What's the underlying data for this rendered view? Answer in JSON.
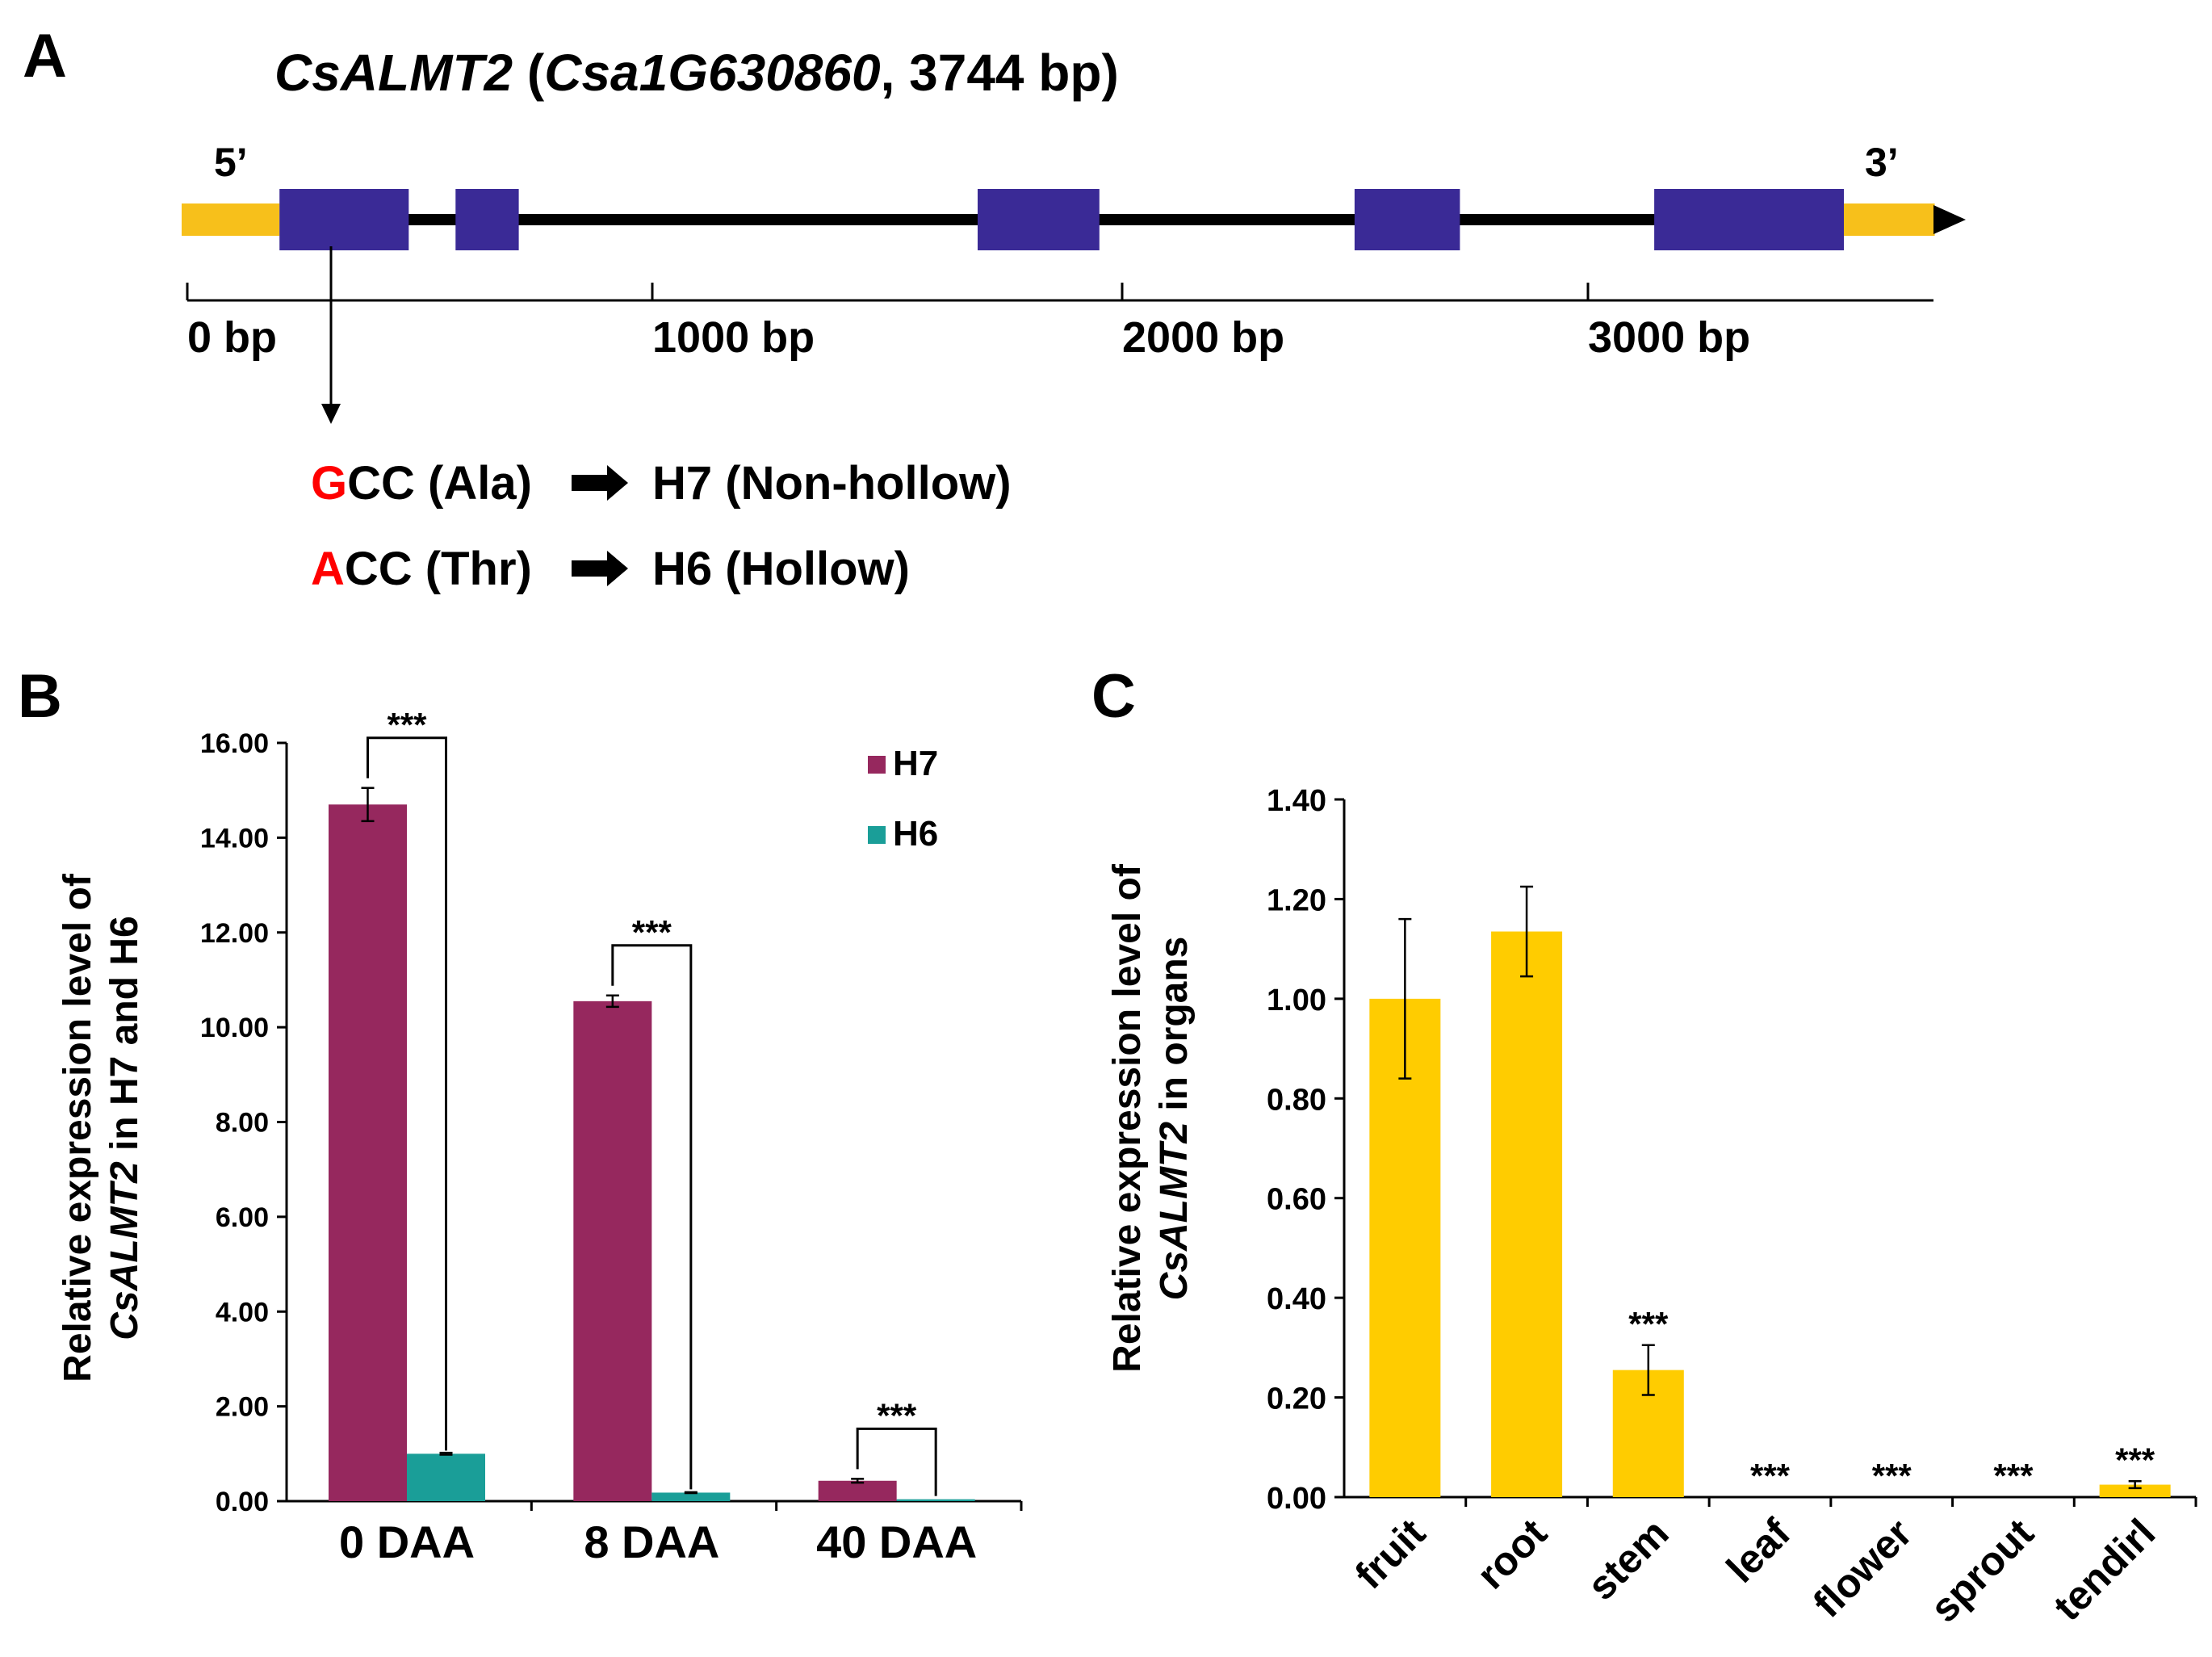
{
  "colors": {
    "exon": "#3A2A96",
    "utr": "#F7C01B",
    "intron": "#000000",
    "h7": "#96285E",
    "h6": "#1A9E98",
    "organ_bar": "#FFCC00",
    "mutation": "#FF0000"
  },
  "panelA": {
    "label": "A",
    "title": {
      "gene": "CsALMT2",
      "paren_open": " (",
      "locus": "Csa1G630860",
      "rest": ", 3744 bp)"
    },
    "five_prime": "5’",
    "three_prime": "3’",
    "gene_length_bp": 3744,
    "features": [
      {
        "type": "utr",
        "start": 0,
        "end": 209
      },
      {
        "type": "exon",
        "start": 209,
        "end": 485
      },
      {
        "type": "exon",
        "start": 585,
        "end": 720
      },
      {
        "type": "exon",
        "start": 1700,
        "end": 1960
      },
      {
        "type": "exon",
        "start": 2505,
        "end": 2730
      },
      {
        "type": "exon",
        "start": 3145,
        "end": 3550
      },
      {
        "type": "utr",
        "start": 3550,
        "end": 3744
      }
    ],
    "scale_ticks": [
      "0 bp",
      "1000 bp",
      "2000 bp",
      "3000 bp"
    ],
    "mutation_position_bp": 310,
    "mutations": [
      {
        "base": "G",
        "rest": "CC (Ala)",
        "result": "H7 (Non-hollow)"
      },
      {
        "base": "A",
        "rest": "CC (Thr)",
        "result": "H6 (Hollow)"
      }
    ]
  },
  "panelB": {
    "label": "B",
    "ylabel_line1": "Relative expression level of",
    "ylabel_italic": "CsALMT2",
    "ylabel_rest": " in H7 and H6",
    "significance": "***"
  },
  "panelC": {
    "label": "C",
    "ylabel_line1": "Relative expression level of",
    "ylabel_italic": "CsALMT2",
    "ylabel_rest": " in organs",
    "significance": "***"
  },
  "chart_data": [
    {
      "type": "bar",
      "panel": "B",
      "categories": [
        "0 DAA",
        "8 DAA",
        "40 DAA"
      ],
      "series": [
        {
          "name": "H7",
          "values": [
            14.7,
            10.55,
            0.43
          ],
          "errors": [
            0.35,
            0.12,
            0.04
          ]
        },
        {
          "name": "H6",
          "values": [
            1.0,
            0.18,
            0.04
          ],
          "errors": [
            0.02,
            0.01,
            0.005
          ]
        }
      ],
      "ylim": [
        0,
        16
      ],
      "yticks": [
        "0.00",
        "2.00",
        "4.00",
        "6.00",
        "8.00",
        "10.00",
        "12.00",
        "14.00",
        "16.00"
      ],
      "ylabel": "Relative expression level of CsALMT2 in H7 and H6",
      "xlabel": "",
      "legend": [
        "H7",
        "H6"
      ],
      "legend_position": "top-right",
      "annotations": [
        "***",
        "***",
        "***"
      ]
    },
    {
      "type": "bar",
      "panel": "C",
      "categories": [
        "fruit",
        "root",
        "stem",
        "leaf",
        "flower",
        "sprout",
        "tendirl"
      ],
      "values": [
        1.0,
        1.135,
        0.255,
        0.0,
        0.0,
        0.0,
        0.025
      ],
      "errors": [
        0.16,
        0.09,
        0.05,
        0,
        0,
        0,
        0.007
      ],
      "significant": [
        false,
        false,
        true,
        true,
        true,
        true,
        true
      ],
      "ylim": [
        0,
        1.4
      ],
      "yticks": [
        "0.00",
        "0.20",
        "0.40",
        "0.60",
        "0.80",
        "1.00",
        "1.20",
        "1.40"
      ],
      "ylabel": "Relative expression level of CsALMT2 in organs",
      "xlabel": ""
    }
  ]
}
